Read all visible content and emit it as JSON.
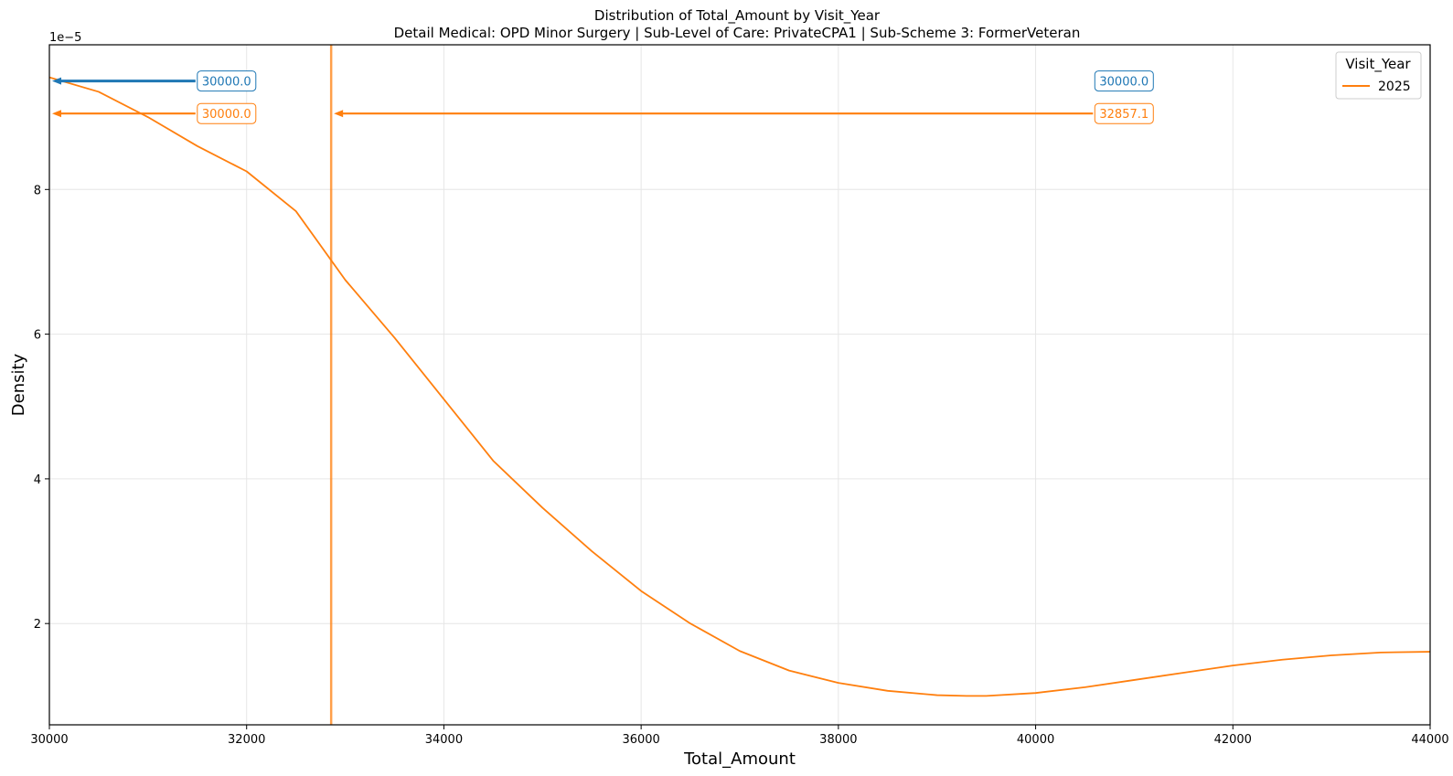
{
  "chart_data": {
    "type": "line",
    "title": "Distribution of Total_Amount by Visit_Year",
    "subtitle": "Detail Medical: OPD Minor Surgery | Sub-Level of Care: PrivateCPA1 | Sub-Scheme 3: FormerVeteran",
    "xlabel": "Total_Amount",
    "ylabel": "Density",
    "y_offset_label": "1e−5",
    "xlim": [
      30000,
      44000
    ],
    "ylim": [
      0.6,
      10.0
    ],
    "grid": true,
    "x_ticks": [
      30000,
      32000,
      34000,
      36000,
      38000,
      40000,
      42000,
      44000
    ],
    "x_tick_labels": [
      "30000",
      "32000",
      "34000",
      "36000",
      "38000",
      "40000",
      "42000",
      "44000"
    ],
    "y_ticks": [
      2,
      4,
      6,
      8
    ],
    "y_tick_labels": [
      "2",
      "4",
      "6",
      "8"
    ],
    "series": [
      {
        "name": "2025",
        "color": "#ff7f0e",
        "x": [
          30000,
          30500,
          31000,
          31500,
          32000,
          32500,
          33000,
          33500,
          34000,
          34500,
          35000,
          35500,
          36000,
          36500,
          37000,
          37500,
          38000,
          38500,
          39000,
          39300,
          39500,
          40000,
          40500,
          41000,
          41500,
          42000,
          42500,
          43000,
          43500,
          44000
        ],
        "y": [
          9.55,
          9.35,
          9.0,
          8.6,
          8.25,
          7.7,
          6.75,
          5.95,
          5.1,
          4.25,
          3.6,
          3.0,
          2.45,
          2.0,
          1.62,
          1.35,
          1.18,
          1.07,
          1.01,
          1.0,
          1.0,
          1.04,
          1.12,
          1.22,
          1.32,
          1.42,
          1.5,
          1.56,
          1.6,
          1.61
        ]
      }
    ],
    "vertical_lines": [
      {
        "x": 32857.1,
        "color": "#ff7f0e"
      }
    ],
    "annotations": [
      {
        "label": "30000.0",
        "color": "#1f77b4",
        "y": 9.5,
        "box_x": 31500,
        "arrow_to_x": 30000,
        "bold": true
      },
      {
        "label": "30000.0",
        "color": "#1f77b4",
        "y": 9.5,
        "box_x": 40600,
        "arrow_to_x": 30000,
        "bold": true,
        "arrow": false
      },
      {
        "label": "30000.0",
        "color": "#ff7f0e",
        "y": 9.05,
        "box_x": 31500,
        "arrow_to_x": 30000,
        "bold": false
      },
      {
        "label": "32857.1",
        "color": "#ff7f0e",
        "y": 9.05,
        "box_x": 40600,
        "arrow_to_x": 32857.1,
        "bold": false
      }
    ],
    "legend": {
      "title": "Visit_Year",
      "placement": "top-right",
      "entries": [
        {
          "label": "2025",
          "color": "#ff7f0e"
        }
      ]
    }
  }
}
